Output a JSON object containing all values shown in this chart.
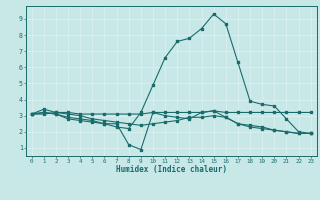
{
  "xlabel": "Humidex (Indice chaleur)",
  "xlim": [
    -0.5,
    23.5
  ],
  "ylim": [
    0.5,
    9.8
  ],
  "xticks": [
    0,
    1,
    2,
    3,
    4,
    5,
    6,
    7,
    8,
    9,
    10,
    11,
    12,
    13,
    14,
    15,
    16,
    17,
    18,
    19,
    20,
    21,
    22,
    23
  ],
  "yticks": [
    1,
    2,
    3,
    4,
    5,
    6,
    7,
    8,
    9
  ],
  "bg_color": "#c8e8e8",
  "grid_color": "#e8f8f8",
  "line_color": "#1a6b6b",
  "lines": [
    [
      3.1,
      3.4,
      3.2,
      3.2,
      3.1,
      3.1,
      3.1,
      3.1,
      3.1,
      3.1,
      3.2,
      3.2,
      3.2,
      3.2,
      3.2,
      3.3,
      3.2,
      3.2,
      3.2,
      3.2,
      3.2,
      3.2,
      3.2,
      3.2
    ],
    [
      3.1,
      3.2,
      3.1,
      2.8,
      2.7,
      2.6,
      2.5,
      2.5,
      1.2,
      0.9,
      3.2,
      3.0,
      2.9,
      2.8,
      3.2,
      3.3,
      2.9,
      2.5,
      2.4,
      2.3,
      2.1,
      2.0,
      1.9,
      1.9
    ],
    [
      3.1,
      3.2,
      3.1,
      2.9,
      2.8,
      2.7,
      2.5,
      2.3,
      2.2,
      3.2,
      4.9,
      6.6,
      7.6,
      7.8,
      8.4,
      9.3,
      8.7,
      6.3,
      3.9,
      3.7,
      3.6,
      2.8,
      2.0,
      1.9
    ],
    [
      3.1,
      3.1,
      3.2,
      3.1,
      3.0,
      2.8,
      2.7,
      2.6,
      2.5,
      2.4,
      2.5,
      2.6,
      2.7,
      2.9,
      2.9,
      3.0,
      2.9,
      2.5,
      2.3,
      2.2,
      2.1,
      2.0,
      1.9,
      1.9
    ]
  ]
}
